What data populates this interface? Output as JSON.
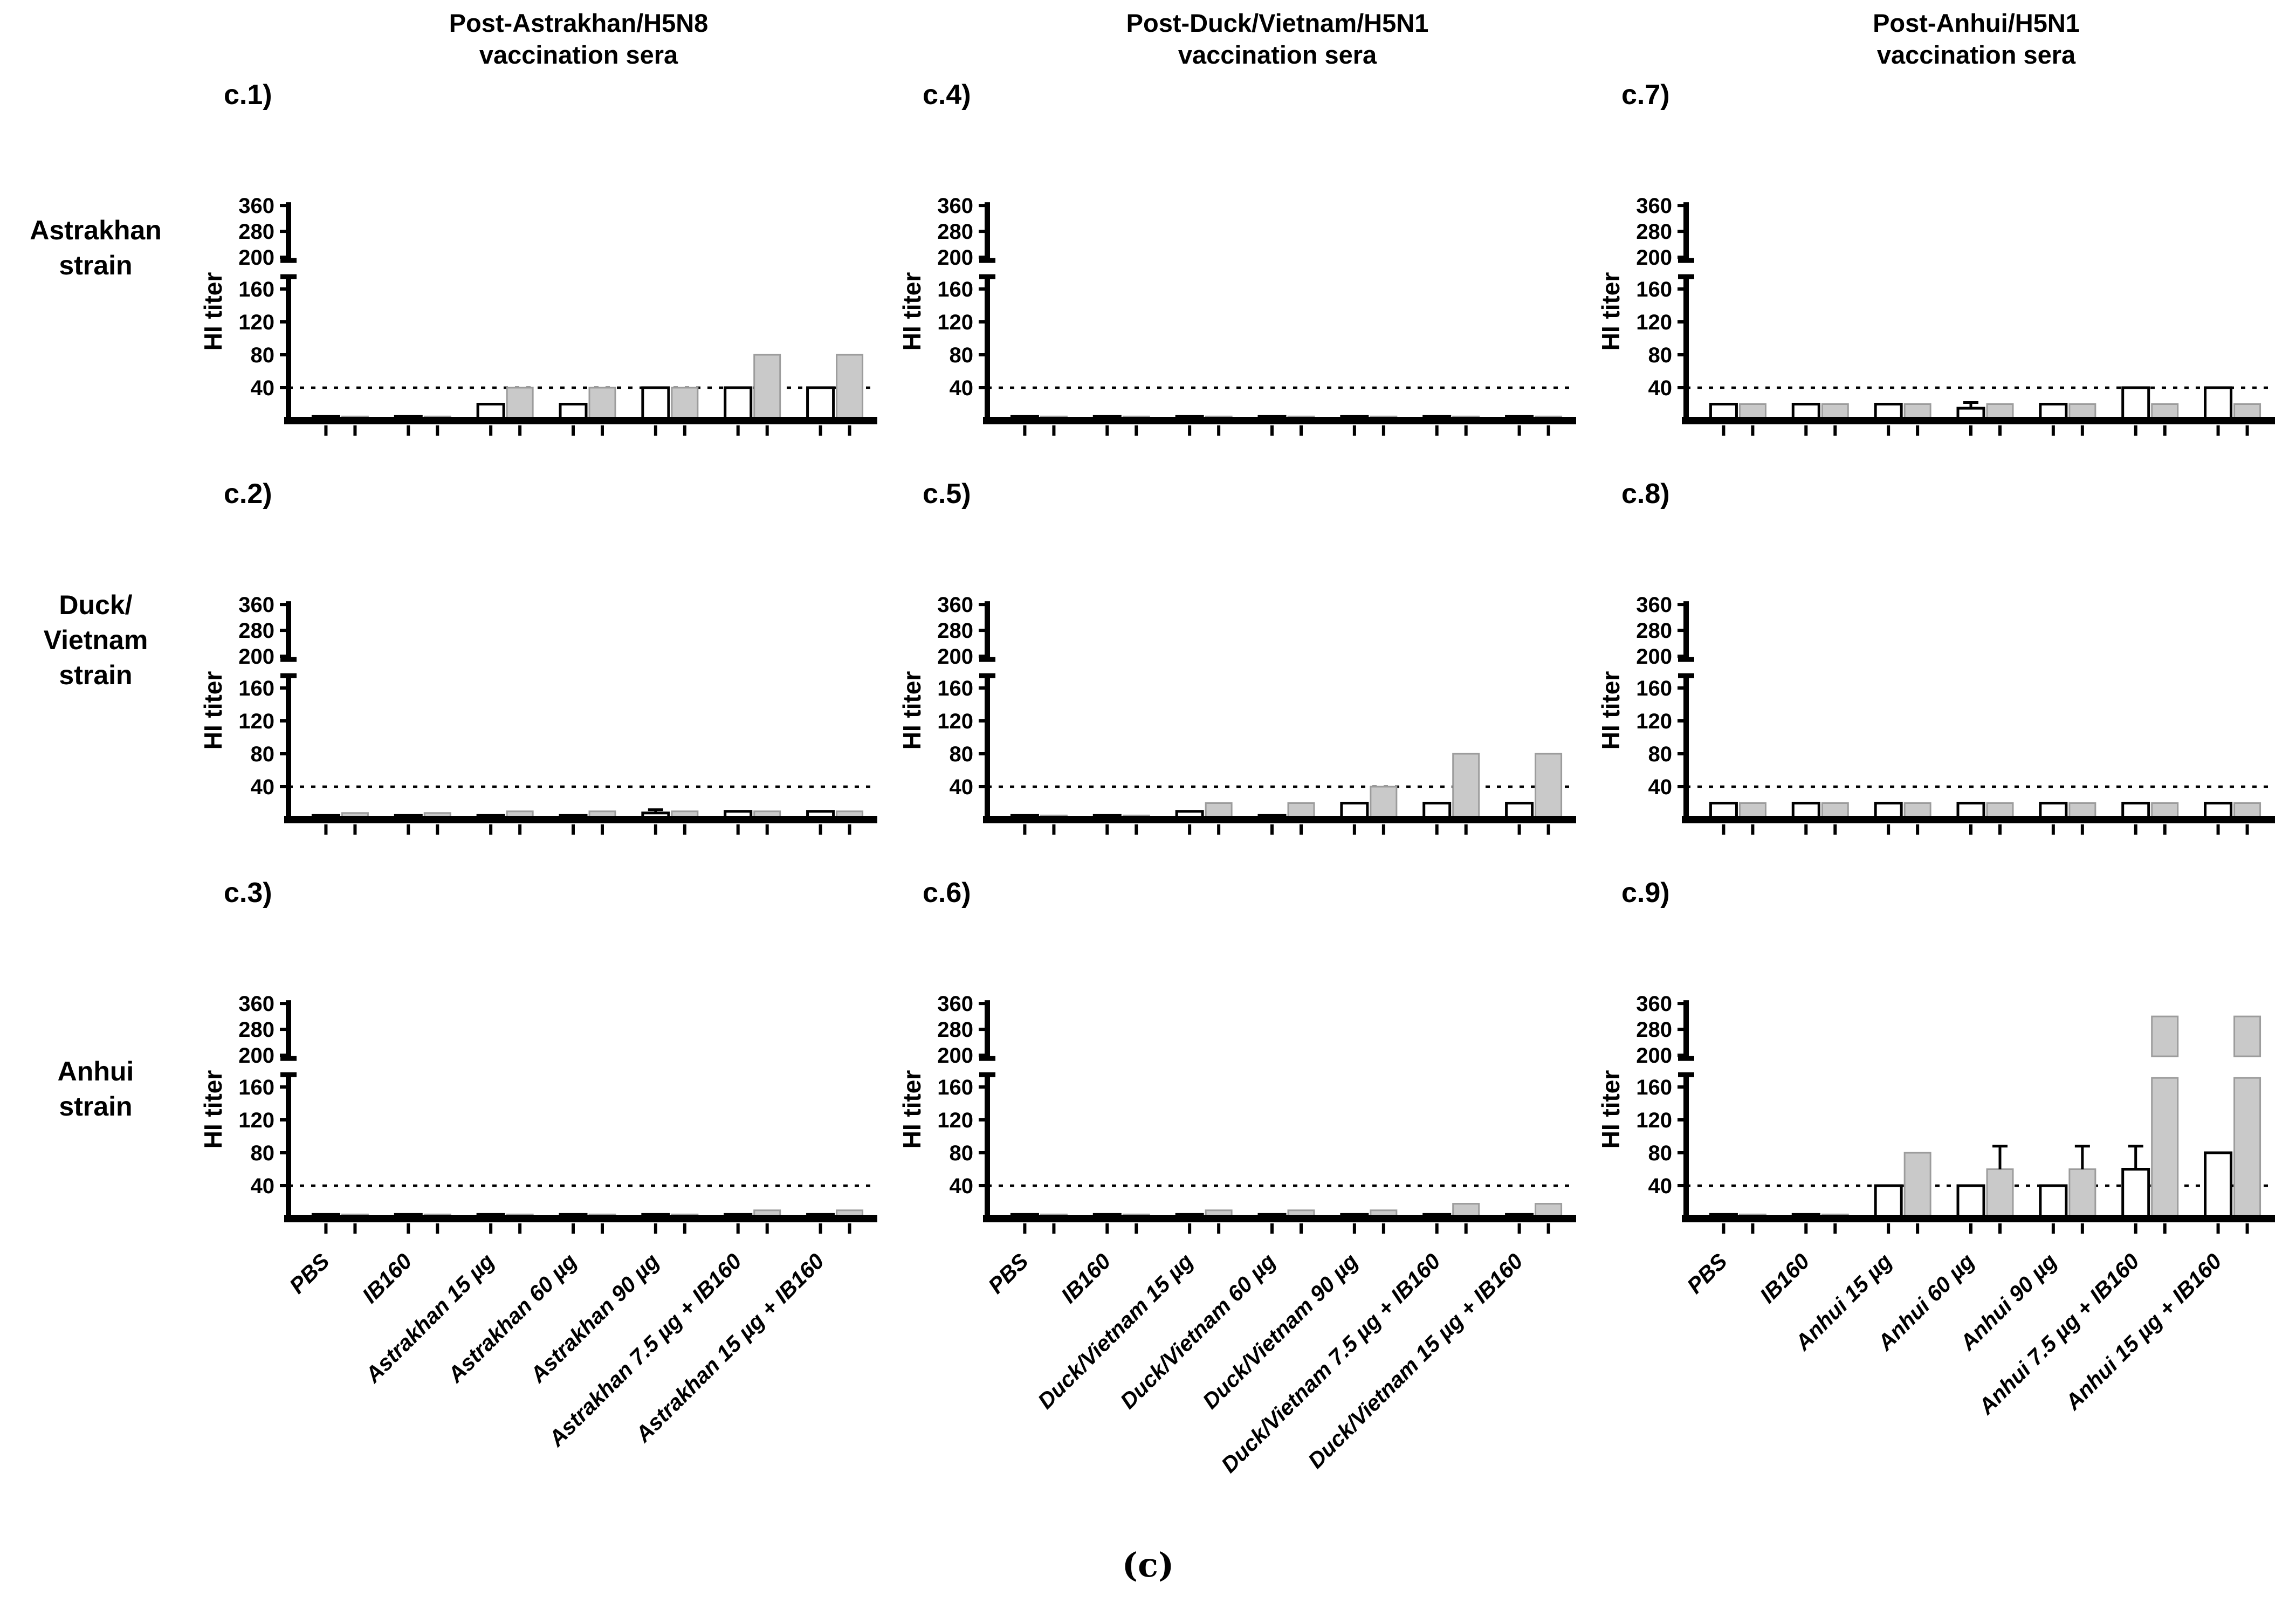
{
  "figure": {
    "caption": "(c)",
    "y_axis_label": "HI titer",
    "column_titles": [
      "Post-Astrakhan/H5N8\nvaccination sera",
      "Post-Duck/Vietnam/H5N1\nvaccination sera",
      "Post-Anhui/H5N1\nvaccination sera"
    ],
    "row_labels": [
      "Astrakhan\nstrain",
      "Duck/\nVietnam\nstrain",
      "Anhui\nstrain"
    ],
    "colors": {
      "gray_bar_fill": "#c9c9c9",
      "gray_bar_edge": "#9c9c9c",
      "open_bar_fill": "#ffffff",
      "ink": "#000000"
    },
    "axis": {
      "ylabel": "HI titer",
      "yticks_lower": [
        40,
        80,
        120,
        160
      ],
      "yticks_upper": [
        200,
        280,
        360
      ],
      "axis_break_between": [
        175,
        190
      ],
      "threshold_dotted_line": 40,
      "grid": "off",
      "legend": "none"
    }
  },
  "chart_data": [
    {
      "id": "c1",
      "label": "c.1)",
      "type": "bar",
      "row_strain": "Astrakhan strain",
      "column_sera": "Post-Astrakhan/H5N8 vaccination sera",
      "ylabel": "HI titer",
      "threshold": 40,
      "ylim_lower": [
        0,
        175
      ],
      "ylim_upper": [
        190,
        370
      ],
      "show_x_labels": false,
      "categories": [
        "PBS",
        "IB160",
        "Astrakhan 15 µg",
        "Astrakhan 60 µg",
        "Astrakhan 90 µg",
        "Astrakhan 7.5 µg + IB160",
        "Astrakhan 15 µg + IB160"
      ],
      "series": [
        {
          "name": "open",
          "values": [
            5,
            5,
            20,
            20,
            40,
            40,
            40
          ],
          "errors": [
            null,
            null,
            null,
            null,
            null,
            null,
            null
          ]
        },
        {
          "name": "filled",
          "values": [
            5,
            5,
            40,
            40,
            40,
            80,
            80
          ],
          "errors": [
            null,
            null,
            null,
            null,
            null,
            null,
            null
          ]
        }
      ]
    },
    {
      "id": "c4",
      "label": "c.4)",
      "type": "bar",
      "row_strain": "Astrakhan strain",
      "column_sera": "Post-Duck/Vietnam/H5N1 vaccination sera",
      "ylabel": "HI titer",
      "threshold": 40,
      "ylim_lower": [
        0,
        175
      ],
      "ylim_upper": [
        190,
        370
      ],
      "show_x_labels": false,
      "categories": [
        "PBS",
        "IB160",
        "Duck/Vietnam 15 µg",
        "Duck/Vietnam 60 µg",
        "Duck/Vietnam 90 µg",
        "Duck/Vietnam 7.5 µg + IB160",
        "Duck/Vietnam 15 µg + IB160"
      ],
      "series": [
        {
          "name": "open",
          "values": [
            5,
            5,
            5,
            5,
            5,
            5,
            5
          ],
          "errors": [
            null,
            null,
            null,
            null,
            null,
            null,
            null
          ]
        },
        {
          "name": "filled",
          "values": [
            5,
            5,
            5,
            5,
            5,
            5,
            5
          ],
          "errors": [
            null,
            null,
            null,
            null,
            null,
            null,
            null
          ]
        }
      ]
    },
    {
      "id": "c7",
      "label": "c.7)",
      "type": "bar",
      "row_strain": "Astrakhan strain",
      "column_sera": "Post-Anhui/H5N1 vaccination sera",
      "ylabel": "HI titer",
      "threshold": 40,
      "ylim_lower": [
        0,
        175
      ],
      "ylim_upper": [
        190,
        370
      ],
      "show_x_labels": false,
      "categories": [
        "PBS",
        "IB160",
        "Anhui 15 µg",
        "Anhui 60 µg",
        "Anhui 90 µg",
        "Anhui 7.5 µg + IB160",
        "Anhui 15 µg + IB160"
      ],
      "series": [
        {
          "name": "open",
          "values": [
            20,
            20,
            20,
            15,
            20,
            40,
            40
          ],
          "errors": [
            null,
            null,
            null,
            22,
            null,
            null,
            null
          ]
        },
        {
          "name": "filled",
          "values": [
            20,
            20,
            20,
            20,
            20,
            20,
            20
          ],
          "errors": [
            null,
            null,
            null,
            null,
            null,
            null,
            null
          ]
        }
      ]
    },
    {
      "id": "c2",
      "label": "c.2)",
      "type": "bar",
      "row_strain": "Duck/Vietnam strain",
      "column_sera": "Post-Astrakhan/H5N8 vaccination sera",
      "ylabel": "HI titer",
      "threshold": 40,
      "ylim_lower": [
        0,
        175
      ],
      "ylim_upper": [
        190,
        370
      ],
      "show_x_labels": false,
      "categories": [
        "PBS",
        "IB160",
        "Astrakhan 15 µg",
        "Astrakhan 60 µg",
        "Astrakhan 90 µg",
        "Astrakhan 7.5 µg + IB160",
        "Astrakhan 15 µg + IB160"
      ],
      "series": [
        {
          "name": "open",
          "values": [
            5,
            5,
            5,
            5,
            8,
            10,
            10
          ],
          "errors": [
            null,
            null,
            null,
            null,
            12,
            null,
            null
          ]
        },
        {
          "name": "filled",
          "values": [
            8,
            8,
            10,
            10,
            10,
            10,
            10
          ],
          "errors": [
            null,
            null,
            null,
            null,
            null,
            null,
            null
          ]
        }
      ]
    },
    {
      "id": "c5",
      "label": "c.5)",
      "type": "bar",
      "row_strain": "Duck/Vietnam strain",
      "column_sera": "Post-Duck/Vietnam/H5N1 vaccination sera",
      "ylabel": "HI titer",
      "threshold": 40,
      "ylim_lower": [
        0,
        175
      ],
      "ylim_upper": [
        190,
        370
      ],
      "show_x_labels": false,
      "categories": [
        "PBS",
        "IB160",
        "Duck/Vietnam 15 µg",
        "Duck/Vietnam 60 µg",
        "Duck/Vietnam 90 µg",
        "Duck/Vietnam 7.5 µg + IB160",
        "Duck/Vietnam 15 µg + IB160"
      ],
      "series": [
        {
          "name": "open",
          "values": [
            5,
            5,
            10,
            5,
            20,
            20,
            20
          ],
          "errors": [
            null,
            null,
            null,
            null,
            null,
            null,
            null
          ]
        },
        {
          "name": "filled",
          "values": [
            5,
            5,
            20,
            20,
            40,
            80,
            80
          ],
          "errors": [
            null,
            null,
            null,
            null,
            null,
            null,
            null
          ]
        }
      ]
    },
    {
      "id": "c8",
      "label": "c.8)",
      "type": "bar",
      "row_strain": "Duck/Vietnam strain",
      "column_sera": "Post-Anhui/H5N1 vaccination sera",
      "ylabel": "HI titer",
      "threshold": 40,
      "ylim_lower": [
        0,
        175
      ],
      "ylim_upper": [
        190,
        370
      ],
      "show_x_labels": false,
      "categories": [
        "PBS",
        "IB160",
        "Anhui 15 µg",
        "Anhui 60 µg",
        "Anhui 90 µg",
        "Anhui 7.5 µg + IB160",
        "Anhui 15 µg + IB160"
      ],
      "series": [
        {
          "name": "open",
          "values": [
            20,
            20,
            20,
            20,
            20,
            20,
            20
          ],
          "errors": [
            null,
            null,
            null,
            null,
            null,
            null,
            null
          ]
        },
        {
          "name": "filled",
          "values": [
            20,
            20,
            20,
            20,
            20,
            20,
            20
          ],
          "errors": [
            null,
            null,
            null,
            null,
            null,
            null,
            null
          ]
        }
      ]
    },
    {
      "id": "c3",
      "label": "c.3)",
      "type": "bar",
      "row_strain": "Anhui strain",
      "column_sera": "Post-Astrakhan/H5N8 vaccination sera",
      "ylabel": "HI titer",
      "threshold": 40,
      "ylim_lower": [
        0,
        175
      ],
      "ylim_upper": [
        190,
        370
      ],
      "show_x_labels": true,
      "categories": [
        "PBS",
        "IB160",
        "Astrakhan 15 µg",
        "Astrakhan 60 µg",
        "Astrakhan 90 µg",
        "Astrakhan 7.5 µg + IB160",
        "Astrakhan 15 µg + IB160"
      ],
      "series": [
        {
          "name": "open",
          "values": [
            5,
            5,
            5,
            5,
            5,
            5,
            5
          ],
          "errors": [
            null,
            null,
            null,
            null,
            null,
            null,
            null
          ]
        },
        {
          "name": "filled",
          "values": [
            5,
            5,
            5,
            5,
            5,
            10,
            10
          ],
          "errors": [
            null,
            null,
            null,
            null,
            null,
            null,
            null
          ]
        }
      ]
    },
    {
      "id": "c6",
      "label": "c.6)",
      "type": "bar",
      "row_strain": "Anhui strain",
      "column_sera": "Post-Duck/Vietnam/H5N1 vaccination sera",
      "ylabel": "HI titer",
      "threshold": 40,
      "ylim_lower": [
        0,
        175
      ],
      "ylim_upper": [
        190,
        370
      ],
      "show_x_labels": true,
      "categories": [
        "PBS",
        "IB160",
        "Duck/Vietnam 15 µg",
        "Duck/Vietnam 60 µg",
        "Duck/Vietnam 90 µg",
        "Duck/Vietnam 7.5 µg + IB160",
        "Duck/Vietnam 15 µg + IB160"
      ],
      "series": [
        {
          "name": "open",
          "values": [
            5,
            5,
            5,
            5,
            5,
            5,
            5
          ],
          "errors": [
            null,
            null,
            null,
            null,
            null,
            null,
            null
          ]
        },
        {
          "name": "filled",
          "values": [
            5,
            5,
            10,
            10,
            10,
            18,
            18
          ],
          "errors": [
            null,
            null,
            null,
            null,
            null,
            null,
            null
          ]
        }
      ]
    },
    {
      "id": "c9",
      "label": "c.9)",
      "type": "bar",
      "row_strain": "Anhui strain",
      "column_sera": "Post-Anhui/H5N1 vaccination sera",
      "ylabel": "HI titer",
      "threshold": 40,
      "ylim_lower": [
        0,
        175
      ],
      "ylim_upper": [
        190,
        370
      ],
      "show_x_labels": true,
      "categories": [
        "PBS",
        "IB160",
        "Anhui 15 µg",
        "Anhui 60 µg",
        "Anhui 90 µg",
        "Anhui 7.5 µg + IB160",
        "Anhui 15 µg + IB160"
      ],
      "series": [
        {
          "name": "open",
          "values": [
            5,
            5,
            40,
            40,
            40,
            60,
            80
          ],
          "errors": [
            null,
            null,
            null,
            null,
            null,
            88,
            null
          ]
        },
        {
          "name": "filled",
          "values": [
            5,
            5,
            80,
            60,
            60,
            320,
            320
          ],
          "errors": [
            null,
            null,
            null,
            88,
            88,
            null,
            null
          ]
        }
      ]
    }
  ]
}
